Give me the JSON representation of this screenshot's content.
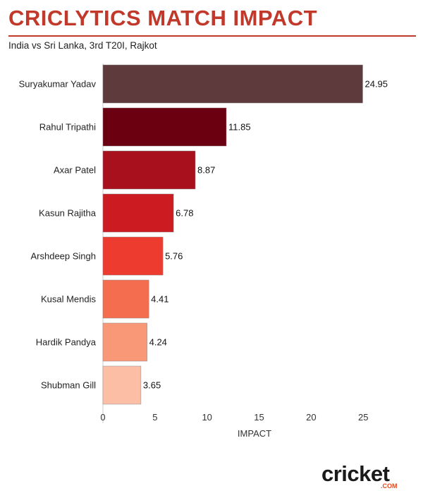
{
  "header": {
    "title": "CRICLYTICS MATCH IMPACT",
    "subtitle": "India vs Sri Lanka, 3rd T20I, Rajkot"
  },
  "logo": {
    "word": "cricket",
    "suffix": ".COM"
  },
  "chart_data": {
    "type": "bar",
    "orientation": "horizontal",
    "categories": [
      "Suryakumar Yadav",
      "Rahul Tripathi",
      "Axar Patel",
      "Kasun Rajitha",
      "Arshdeep Singh",
      "Kusal Mendis",
      "Hardik Pandya",
      "Shubman Gill"
    ],
    "values": [
      24.95,
      11.85,
      8.87,
      6.78,
      5.76,
      4.41,
      4.24,
      3.65
    ],
    "value_labels": [
      "24.95",
      "11.85",
      "8.87",
      "6.78",
      "5.76",
      "4.41",
      "4.24",
      "3.65"
    ],
    "colors": [
      "#5f3a3c",
      "#6b0010",
      "#a8101e",
      "#cc1c22",
      "#ed3b2f",
      "#f46d4f",
      "#f99877",
      "#fcbea5"
    ],
    "xlabel": "IMPACT",
    "ylabel": "",
    "xlim": [
      0,
      26
    ],
    "xticks": [
      0,
      5,
      10,
      15,
      20,
      25
    ],
    "grid": false
  }
}
